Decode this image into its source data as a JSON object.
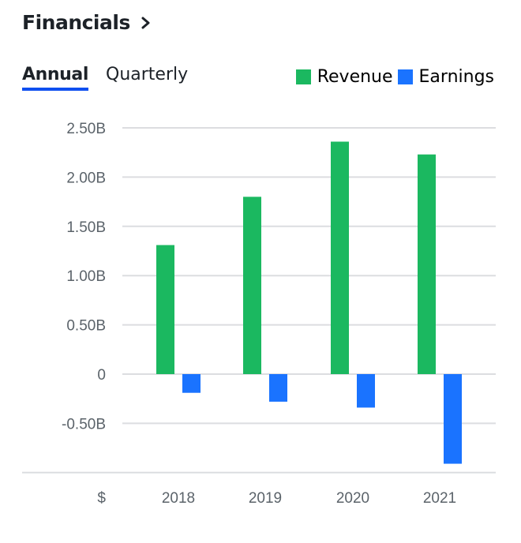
{
  "header": {
    "title": "Financials",
    "chevron_icon": "chevron-right-icon"
  },
  "tabs": [
    {
      "label": "Annual",
      "active": true
    },
    {
      "label": "Quarterly",
      "active": false
    }
  ],
  "colors": {
    "revenue": "#1bb860",
    "earnings": "#1a73ff",
    "tab_underline": "#0f4ff0",
    "grid": "#dcdde0"
  },
  "chart_data": {
    "type": "bar",
    "title": "Financials",
    "categories": [
      "2018",
      "2019",
      "2020",
      "2021"
    ],
    "series": [
      {
        "name": "Revenue",
        "values": [
          1.31,
          1.8,
          2.36,
          2.23
        ]
      },
      {
        "name": "Earnings",
        "values": [
          -0.19,
          -0.28,
          -0.34,
          -0.91
        ]
      }
    ],
    "units": "B (USD)",
    "xlabel": "$",
    "ylabel": "",
    "y_ticks": [
      2.5,
      2.0,
      1.5,
      1.0,
      0.5,
      0,
      -0.5
    ],
    "y_tick_labels": [
      "2.50B",
      "2.00B",
      "1.50B",
      "1.00B",
      "0.50B",
      "0",
      "-0.50B"
    ],
    "ylim": [
      -1.0,
      2.5
    ],
    "grid": true,
    "legend": [
      "Revenue",
      "Earnings"
    ],
    "legend_position": "top-right"
  }
}
